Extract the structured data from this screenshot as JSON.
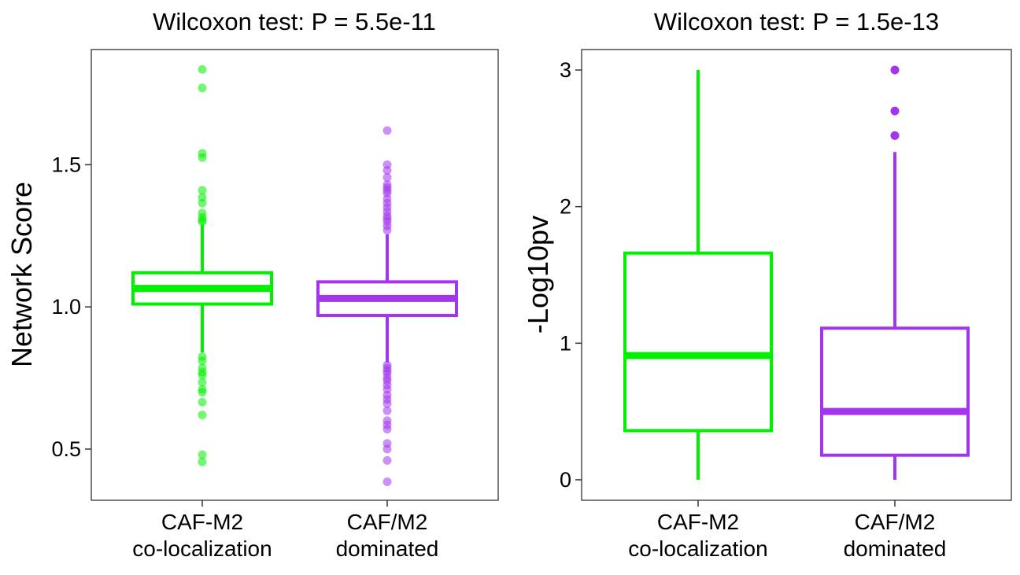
{
  "chart_data": [
    {
      "type": "boxplot",
      "title": "Wilcoxon test: P = 5.5e-11",
      "ylabel": "Network Score",
      "xlabel": "",
      "ylim": [
        0.32,
        1.905
      ],
      "yticks": [
        0.5,
        1.0,
        1.5
      ],
      "ytick_labels": [
        "0.5",
        "1.0",
        "1.5"
      ],
      "grid": false,
      "categories": [
        {
          "line1": "CAF-M2",
          "line2": "co-localization"
        },
        {
          "line1": "CAF/M2",
          "line2": "dominated"
        }
      ],
      "boxes": [
        {
          "color": "#00f000",
          "q1": 1.01,
          "median": 1.065,
          "q3": 1.12,
          "whisker_low": 0.84,
          "whisker_high": 1.29,
          "outliers": [
            1.835,
            1.77,
            1.54,
            1.525,
            1.41,
            1.385,
            1.365,
            1.33,
            1.315,
            1.305,
            1.3,
            0.825,
            0.81,
            0.785,
            0.77,
            0.76,
            0.735,
            0.71,
            0.7,
            0.665,
            0.62,
            0.48,
            0.455
          ]
        },
        {
          "color": "#a335ee",
          "q1": 0.97,
          "median": 1.03,
          "q3": 1.088,
          "whisker_low": 0.805,
          "whisker_high": 1.255,
          "outliers": [
            1.62,
            1.5,
            1.48,
            1.455,
            1.43,
            1.42,
            1.41,
            1.4,
            1.38,
            1.365,
            1.35,
            1.335,
            1.32,
            1.31,
            1.3,
            1.285,
            1.27,
            0.795,
            0.785,
            0.775,
            0.765,
            0.75,
            0.74,
            0.725,
            0.71,
            0.69,
            0.675,
            0.66,
            0.635,
            0.6,
            0.585,
            0.57,
            0.52,
            0.5,
            0.46,
            0.385
          ]
        }
      ]
    },
    {
      "type": "boxplot",
      "title": "Wilcoxon test: P = 1.5e-13",
      "ylabel": "-Log10pv",
      "xlabel": "",
      "ylim": [
        -0.15,
        3.15
      ],
      "yticks": [
        0,
        1,
        2,
        3
      ],
      "ytick_labels": [
        "0",
        "1",
        "2",
        "3"
      ],
      "grid": false,
      "categories": [
        {
          "line1": "CAF-M2",
          "line2": "co-localization"
        },
        {
          "line1": "CAF/M2",
          "line2": "dominated"
        }
      ],
      "boxes": [
        {
          "color": "#00f000",
          "q1": 0.36,
          "median": 0.91,
          "q3": 1.66,
          "whisker_low": 0.0,
          "whisker_high": 3.0,
          "outliers": []
        },
        {
          "color": "#a335ee",
          "q1": 0.18,
          "median": 0.5,
          "q3": 1.11,
          "whisker_low": 0.0,
          "whisker_high": 2.4,
          "outliers": [
            3.0,
            2.7,
            2.52
          ]
        }
      ]
    }
  ]
}
